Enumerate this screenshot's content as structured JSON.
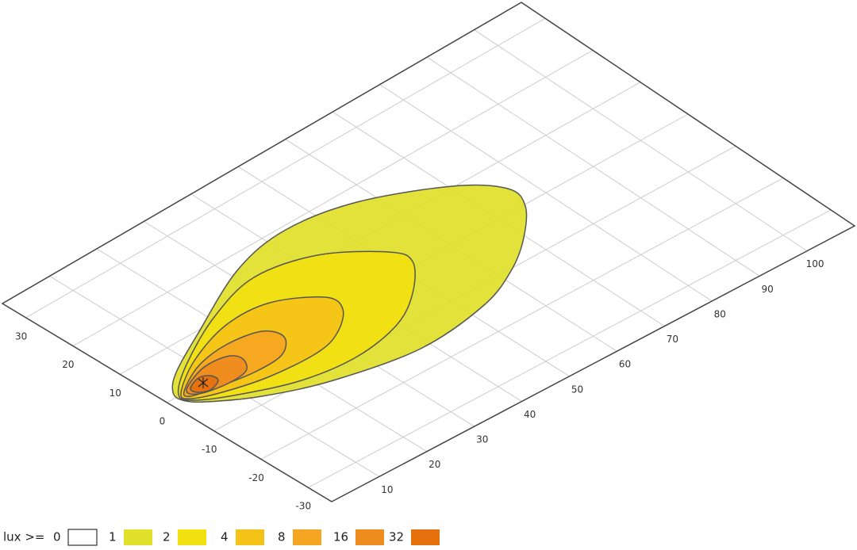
{
  "chart_data": {
    "type": "contour",
    "xlim": [
      0,
      110
    ],
    "ylim": [
      -35,
      35
    ],
    "xticks": [
      10,
      20,
      30,
      40,
      50,
      60,
      70,
      80,
      90,
      100
    ],
    "yticks": [
      -30,
      -20,
      -10,
      0,
      10,
      20,
      30
    ],
    "grid": true,
    "legend_title": "lux >=",
    "levels": [
      0,
      1,
      2,
      4,
      8,
      16,
      32
    ],
    "colors": [
      "#ffffff",
      "#e0e02a",
      "#f2e010",
      "#f5c218",
      "#f4a522",
      "#ee8c20",
      "#e4700e"
    ]
  }
}
